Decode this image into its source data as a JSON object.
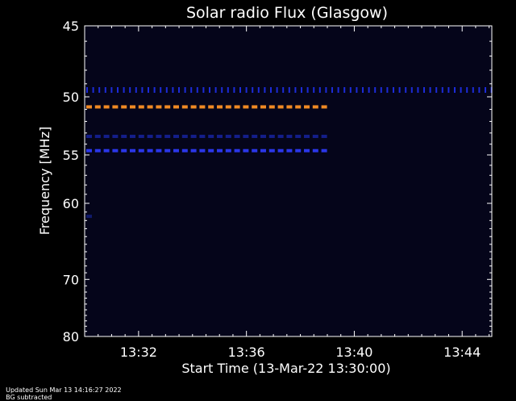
{
  "chart_data": {
    "type": "heatmap",
    "title": "Solar radio Flux (Glasgow)",
    "xlabel": "Start Time (13-Mar-22 13:30:00)",
    "ylabel": "Frequency [MHz]",
    "x_unit": "minutes after 13:30",
    "xlim": [
      0,
      15.1
    ],
    "ylim": [
      80,
      45
    ],
    "x_ticks": [
      {
        "value": 2,
        "label": "13:32"
      },
      {
        "value": 6,
        "label": "13:36"
      },
      {
        "value": 10,
        "label": "13:40"
      },
      {
        "value": 14,
        "label": "13:44"
      }
    ],
    "y_ticks": [
      {
        "value": 45,
        "label": "45"
      },
      {
        "value": 50,
        "label": "50"
      },
      {
        "value": 55,
        "label": "55"
      },
      {
        "value": 60,
        "label": "60"
      },
      {
        "value": 70,
        "label": "70"
      },
      {
        "value": 80,
        "label": "80"
      }
    ],
    "background_color": "#05051a",
    "emission_bands": [
      {
        "freq_mhz": 49.5,
        "t_start": 0,
        "t_end": 15.1,
        "color": "#1c2bd8",
        "style": "tick"
      },
      {
        "freq_mhz": 50.8,
        "t_start": 0,
        "t_end": 8.9,
        "color": "#f08a24",
        "style": "dash"
      },
      {
        "freq_mhz": 53.3,
        "t_start": 0,
        "t_end": 8.9,
        "color": "#141e8a",
        "style": "dash"
      },
      {
        "freq_mhz": 54.6,
        "t_start": 0,
        "t_end": 8.9,
        "color": "#2a36e8",
        "style": "dash"
      },
      {
        "freq_mhz": 61.5,
        "t_start": 0,
        "t_end": 0.3,
        "color": "#101a6a",
        "style": "dash"
      }
    ]
  },
  "footer": {
    "updated": "Updated Sun Mar 13 14:16:27 2022",
    "note": "BG subtracted"
  }
}
